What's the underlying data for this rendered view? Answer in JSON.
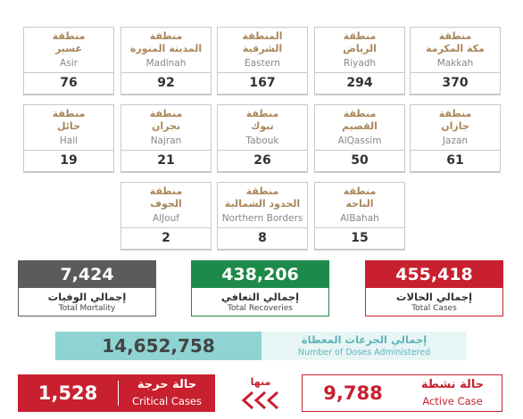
{
  "regions": [
    {
      "ar1": "منطقة",
      "ar2": "مكة المكرمة",
      "en": "Makkah",
      "count": "370"
    },
    {
      "ar1": "منطقة",
      "ar2": "الرياض",
      "en": "Riyadh",
      "count": "294"
    },
    {
      "ar1": "المنطقة",
      "ar2": "الشرقية",
      "en": "Eastern",
      "count": "167"
    },
    {
      "ar1": "منطقة",
      "ar2": "المدينة المنورة",
      "en": "Madinah",
      "count": "92"
    },
    {
      "ar1": "منطقة",
      "ar2": "عسير",
      "en": "Asir",
      "count": "76"
    },
    {
      "ar1": "منطقة",
      "ar2": "جازان",
      "en": "Jazan",
      "count": "61"
    },
    {
      "ar1": "منطقة",
      "ar2": "القصيم",
      "en": "AlQassim",
      "count": "50"
    },
    {
      "ar1": "منطقة",
      "ar2": "تبوك",
      "en": "Tabouk",
      "count": "26"
    },
    {
      "ar1": "منطقة",
      "ar2": "نجران",
      "en": "Najran",
      "count": "21"
    },
    {
      "ar1": "منطقة",
      "ar2": "حائل",
      "en": "Hail",
      "count": "19"
    },
    {
      "ar1": "منطقة",
      "ar2": "الباحة",
      "en": "AlBahah",
      "count": "15"
    },
    {
      "ar1": "منطقة",
      "ar2": "الحدود الشمالية",
      "en": "Northern Borders",
      "count": "8"
    },
    {
      "ar1": "منطقة",
      "ar2": "الجوف",
      "en": "AlJouf",
      "count": "2"
    }
  ],
  "totals": [
    {
      "value": "455,418",
      "ar": "إجمالي الحالات",
      "en": "Total Cases"
    },
    {
      "value": "438,206",
      "ar": "إجمالي التعافي",
      "en": "Total Recoveries"
    },
    {
      "value": "7,424",
      "ar": "إجمالي الوفيات",
      "en": "Total Mortality"
    }
  ],
  "doses": {
    "value": "14,652,758",
    "ar": "إجمالي الجرعات المعطاة",
    "en": "Number of Doses Administered"
  },
  "active": {
    "value": "9,788",
    "ar": "حالة نشطة",
    "en": "Active Case"
  },
  "of_which": "منها",
  "critical": {
    "value": "1,528",
    "ar": "حالة حرجة",
    "en": "Critical Cases"
  }
}
